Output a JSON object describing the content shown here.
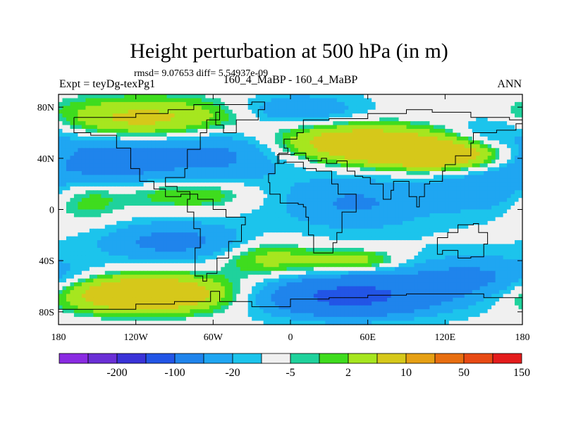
{
  "title": "Height perturbation at 500 hPa (in m)",
  "stats": "rmsd= 9.07653 diff= 5.54937e-09",
  "subtitle_left": "Expt = teyDg-texPg1",
  "subtitle_center": "160_4_MaBP - 160_4_MaBP",
  "subtitle_right": "ANN",
  "chart_data": {
    "type": "heatmap",
    "title": "Height perturbation at 500 hPa (in m)",
    "xlim": [
      -180,
      180
    ],
    "ylim": [
      -90,
      90
    ],
    "x_ticks": [
      {
        "value": -180,
        "label": "180"
      },
      {
        "value": -120,
        "label": "120W"
      },
      {
        "value": -60,
        "label": "60W"
      },
      {
        "value": 0,
        "label": "0"
      },
      {
        "value": 60,
        "label": "60E"
      },
      {
        "value": 120,
        "label": "120E"
      },
      {
        "value": 180,
        "label": "180"
      }
    ],
    "y_ticks": [
      {
        "value": 80,
        "label": "80N"
      },
      {
        "value": 40,
        "label": "40N"
      },
      {
        "value": 0,
        "label": "0"
      },
      {
        "value": -40,
        "label": "40S"
      },
      {
        "value": -80,
        "label": "80S"
      }
    ],
    "colorbar": {
      "colors": [
        "#8a2be2",
        "#6a2fd6",
        "#3a33d8",
        "#2255e6",
        "#1f84ec",
        "#1fa6f2",
        "#1cc4ec",
        "#f0f0f0",
        "#1fd29c",
        "#3fdc1e",
        "#a6e61f",
        "#d6c81a",
        "#e6a014",
        "#e86e10",
        "#e84a14",
        "#e41c1c"
      ],
      "tick_labels": [
        {
          "after_index": 1,
          "label": "-200"
        },
        {
          "after_index": 3,
          "label": "-100"
        },
        {
          "after_index": 5,
          "label": "-20"
        },
        {
          "after_index": 7,
          "label": "-5"
        },
        {
          "after_index": 9,
          "label": "2"
        },
        {
          "after_index": 11,
          "label": "10"
        },
        {
          "after_index": 13,
          "label": "50"
        },
        {
          "after_index": 15,
          "label": "150"
        }
      ]
    },
    "features_m": [
      {
        "lon": 0,
        "lat": 0,
        "h": -10,
        "sx": 360,
        "sy": 180
      },
      {
        "lon": -110,
        "lat": 70,
        "h": 30,
        "sx": 55,
        "sy": 12
      },
      {
        "lon": -150,
        "lat": 38,
        "h": -28,
        "sx": 35,
        "sy": 14
      },
      {
        "lon": -60,
        "lat": 45,
        "h": -22,
        "sx": 40,
        "sy": 16
      },
      {
        "lon": 5,
        "lat": 78,
        "h": -18,
        "sx": 30,
        "sy": 8
      },
      {
        "lon": 55,
        "lat": 52,
        "h": 38,
        "sx": 45,
        "sy": 10
      },
      {
        "lon": 115,
        "lat": 42,
        "h": 38,
        "sx": 38,
        "sy": 8
      },
      {
        "lon": 160,
        "lat": 62,
        "h": -12,
        "sx": 25,
        "sy": 10
      },
      {
        "lon": 50,
        "lat": 5,
        "h": -18,
        "sx": 40,
        "sy": 14
      },
      {
        "lon": -80,
        "lat": 12,
        "h": 16,
        "sx": 35,
        "sy": 8
      },
      {
        "lon": -90,
        "lat": -25,
        "h": -22,
        "sx": 38,
        "sy": 10
      },
      {
        "lon": -160,
        "lat": 10,
        "h": 14,
        "sx": 22,
        "sy": 14
      },
      {
        "lon": 45,
        "lat": -40,
        "h": 20,
        "sx": 28,
        "sy": 6
      },
      {
        "lon": -115,
        "lat": -66,
        "h": 50,
        "sx": 45,
        "sy": 10
      },
      {
        "lon": 45,
        "lat": -68,
        "h": -58,
        "sx": 42,
        "sy": 10
      },
      {
        "lon": 140,
        "lat": -55,
        "h": -22,
        "sx": 45,
        "sy": 12
      },
      {
        "lon": -20,
        "lat": -38,
        "h": 16,
        "sx": 25,
        "sy": 10
      },
      {
        "lon": 150,
        "lat": 15,
        "h": -14,
        "sx": 30,
        "sy": 12
      }
    ]
  }
}
